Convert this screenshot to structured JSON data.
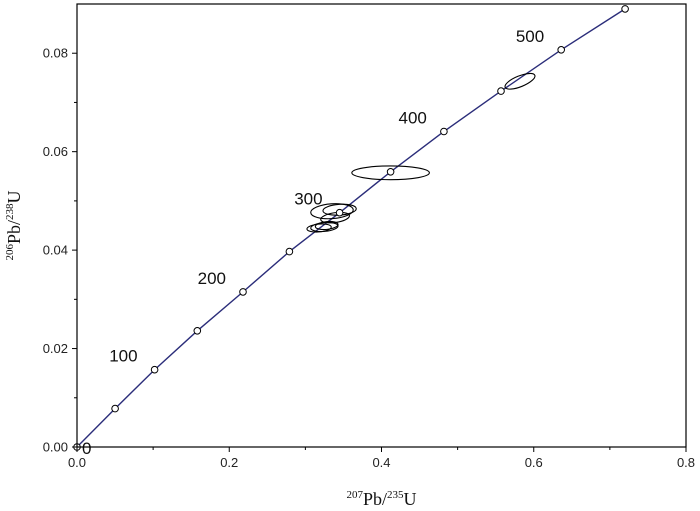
{
  "chart_data": {
    "type": "scatter",
    "subtype": "concordia-diagram",
    "xlabel": {
      "sup1": "207",
      "main1": "Pb/",
      "sup2": "235",
      "main2": "U"
    },
    "ylabel": {
      "sup1": "206",
      "main1": "Pb/",
      "sup2": "238",
      "main2": "U"
    },
    "xlim": [
      0.0,
      0.8
    ],
    "ylim": [
      0.0,
      0.09
    ],
    "x_ticks": [
      "0.0",
      "0.2",
      "0.4",
      "0.6",
      "0.8"
    ],
    "y_ticks": [
      "0.00",
      "0.02",
      "0.04",
      "0.06",
      "0.08"
    ],
    "grid": false,
    "colors": {
      "concordia": "#2b2d7a",
      "ellipse": "#000000",
      "axis": "#000000"
    },
    "concordia_points": [
      {
        "x": 0.0,
        "y": 0.0
      },
      {
        "x": 0.05,
        "y": 0.0078
      },
      {
        "x": 0.102,
        "y": 0.0157
      },
      {
        "x": 0.158,
        "y": 0.0236
      },
      {
        "x": 0.218,
        "y": 0.0315
      },
      {
        "x": 0.279,
        "y": 0.0397
      },
      {
        "x": 0.345,
        "y": 0.0476
      },
      {
        "x": 0.412,
        "y": 0.0559
      },
      {
        "x": 0.482,
        "y": 0.0641
      },
      {
        "x": 0.557,
        "y": 0.0723
      },
      {
        "x": 0.636,
        "y": 0.0807
      },
      {
        "x": 0.72,
        "y": 0.089
      }
    ],
    "age_labels": [
      {
        "text": "0",
        "x": 0.0,
        "y": 0.0
      },
      {
        "text": "100",
        "x": 0.102,
        "y": 0.0157
      },
      {
        "text": "200",
        "x": 0.218,
        "y": 0.0315
      },
      {
        "text": "300",
        "x": 0.345,
        "y": 0.0476
      },
      {
        "text": "400",
        "x": 0.482,
        "y": 0.0641
      },
      {
        "text": "500",
        "x": 0.636,
        "y": 0.0807
      }
    ],
    "ellipses": [
      {
        "x": 0.412,
        "y": 0.0557,
        "sx": 0.051,
        "sy": 0.0014,
        "angle": 0
      },
      {
        "x": 0.582,
        "y": 0.0743,
        "sx": 0.021,
        "sy": 0.0011,
        "angle": -22
      },
      {
        "x": 0.335,
        "y": 0.0479,
        "sx": 0.028,
        "sy": 0.0015,
        "angle": -4
      },
      {
        "x": 0.345,
        "y": 0.0482,
        "sx": 0.022,
        "sy": 0.0011,
        "angle": -4
      },
      {
        "x": 0.339,
        "y": 0.0466,
        "sx": 0.019,
        "sy": 0.001,
        "angle": -8
      },
      {
        "x": 0.325,
        "y": 0.0447,
        "sx": 0.018,
        "sy": 0.0009,
        "angle": -5
      },
      {
        "x": 0.318,
        "y": 0.0445,
        "sx": 0.016,
        "sy": 0.0008,
        "angle": -5
      },
      {
        "x": 0.328,
        "y": 0.045,
        "sx": 0.015,
        "sy": 0.0008,
        "angle": -6
      }
    ]
  }
}
